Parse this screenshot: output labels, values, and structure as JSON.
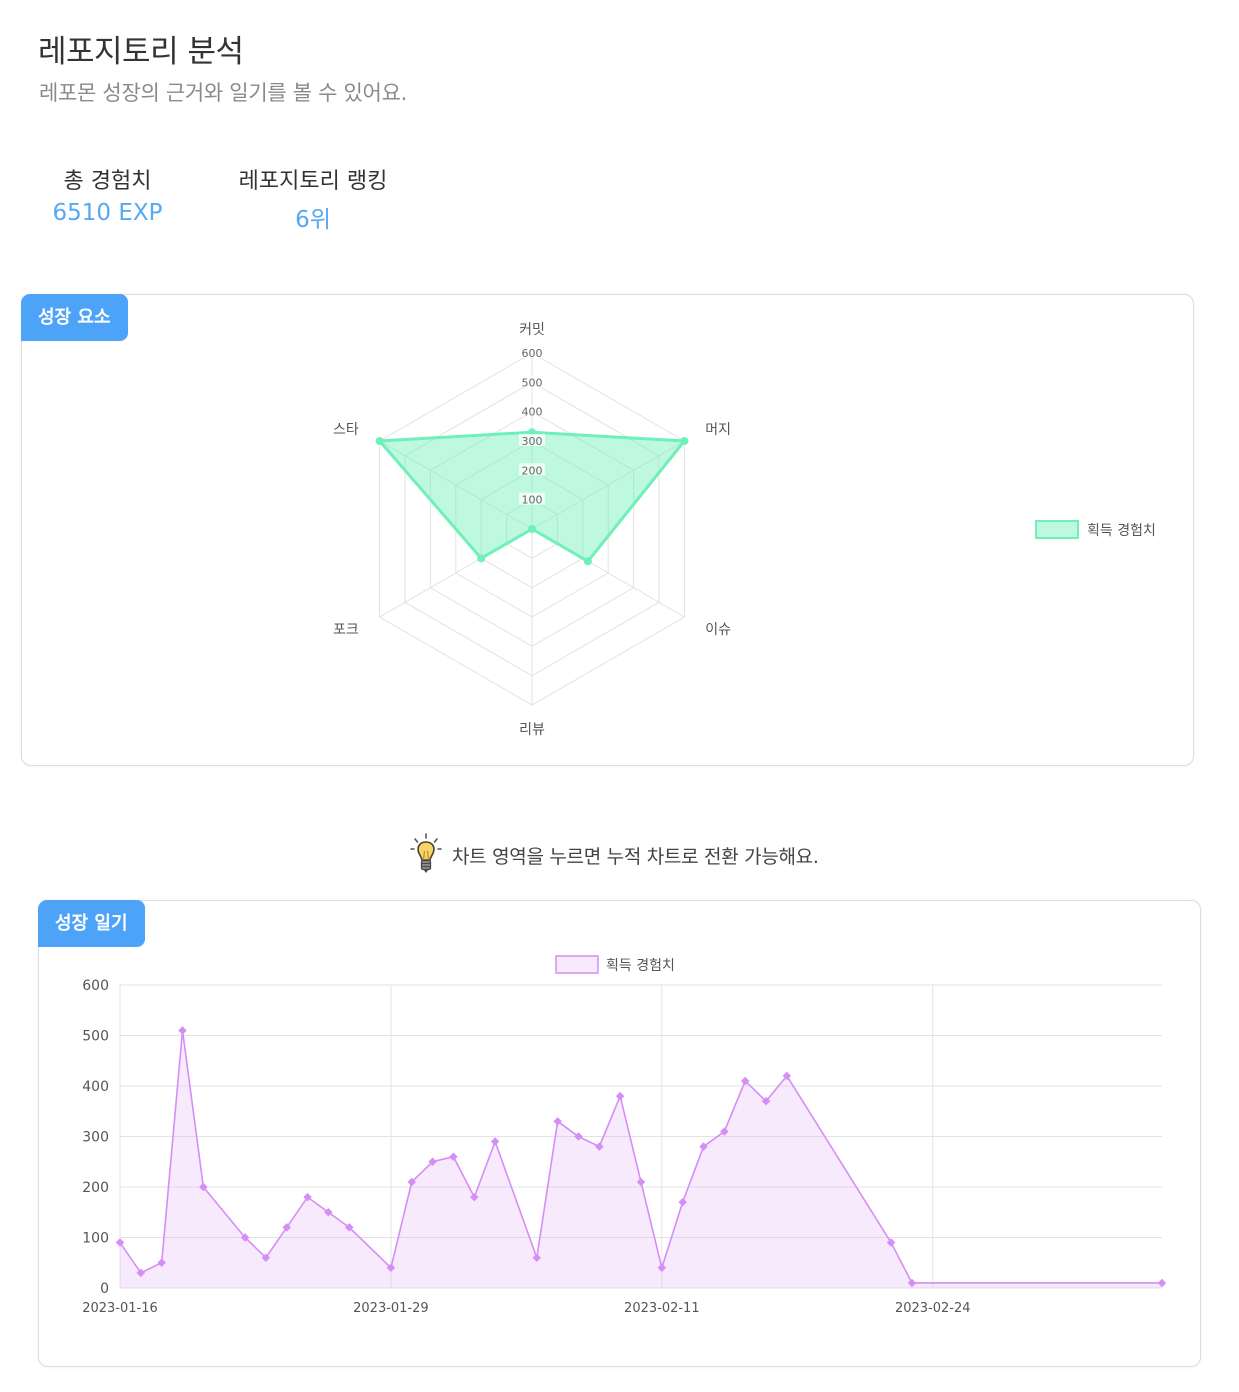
{
  "header": {
    "title": "레포지토리 분석",
    "subtitle": "레포몬 성장의 근거와 일기를 볼 수 있어요."
  },
  "stats": {
    "total_exp_label": "총 경험치",
    "total_exp_value": "6510 EXP",
    "ranking_label": "레포지토리 랭킹",
    "ranking_value": "6위"
  },
  "growth_factors": {
    "tag": "성장 요소"
  },
  "hint": {
    "icon": "lightbulb-icon",
    "text": "차트 영역을 누르면 누적 차트로 전환 가능해요."
  },
  "growth_diary": {
    "tag": "성장 일기"
  },
  "colors": {
    "accent": "#4da3f7",
    "radar_line": "#6ef0b8",
    "radar_fill": "rgba(110,240,184,0.45)",
    "line_stroke": "#d58ef5",
    "line_fill": "rgba(225,170,245,0.25)"
  },
  "chart_data": [
    {
      "type": "radar",
      "categories": [
        "커밋",
        "머지",
        "이슈",
        "리뷰",
        "포크",
        "스타"
      ],
      "series": [
        {
          "name": "획득 경험치",
          "values": [
            330,
            600,
            220,
            0,
            200,
            600
          ]
        }
      ],
      "rlim": [
        0,
        600
      ],
      "ticks": [
        100,
        200,
        300,
        400,
        500,
        600
      ],
      "legend": "right"
    },
    {
      "type": "area",
      "series": [
        {
          "name": "획득 경험치",
          "points": [
            [
              "2023-01-16",
              90
            ],
            [
              "2023-01-17",
              30
            ],
            [
              "2023-01-18",
              50
            ],
            [
              "2023-01-19",
              510
            ],
            [
              "2023-01-20",
              200
            ],
            [
              "2023-01-22",
              100
            ],
            [
              "2023-01-23",
              60
            ],
            [
              "2023-01-24",
              120
            ],
            [
              "2023-01-25",
              180
            ],
            [
              "2023-01-26",
              150
            ],
            [
              "2023-01-27",
              120
            ],
            [
              "2023-01-29",
              40
            ],
            [
              "2023-01-30",
              210
            ],
            [
              "2023-01-31",
              250
            ],
            [
              "2023-02-01",
              260
            ],
            [
              "2023-02-02",
              180
            ],
            [
              "2023-02-03",
              290
            ],
            [
              "2023-02-05",
              60
            ],
            [
              "2023-02-06",
              330
            ],
            [
              "2023-02-07",
              300
            ],
            [
              "2023-02-08",
              280
            ],
            [
              "2023-02-09",
              380
            ],
            [
              "2023-02-10",
              210
            ],
            [
              "2023-02-11",
              40
            ],
            [
              "2023-02-12",
              170
            ],
            [
              "2023-02-13",
              280
            ],
            [
              "2023-02-14",
              310
            ],
            [
              "2023-02-15",
              410
            ],
            [
              "2023-02-16",
              370
            ],
            [
              "2023-02-17",
              420
            ],
            [
              "2023-02-22",
              90
            ],
            [
              "2023-02-23",
              10
            ],
            [
              "2023-03-07",
              10
            ]
          ]
        }
      ],
      "x_ticks": [
        "2023-01-16",
        "2023-01-29",
        "2023-02-11",
        "2023-02-24"
      ],
      "ylim": [
        0,
        600
      ],
      "y_ticks": [
        0,
        100,
        200,
        300,
        400,
        500,
        600
      ],
      "grid": true,
      "legend": "top"
    }
  ]
}
